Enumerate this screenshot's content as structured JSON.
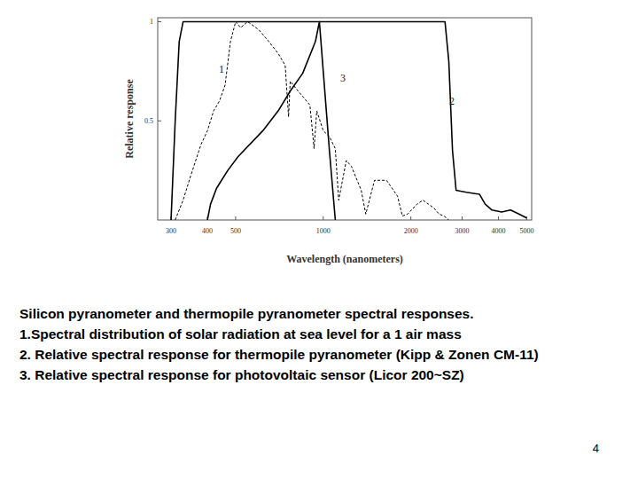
{
  "chart_data": {
    "type": "line",
    "x_label": "Wavelength (nanometers)",
    "y_label": "Relative response",
    "log": "x",
    "grid": false,
    "xlim": [
      270,
      5200
    ],
    "xticks": [
      300,
      400,
      500,
      1000,
      2000,
      3000,
      4000,
      5000
    ],
    "ylim": [
      0,
      1.02
    ],
    "yticks": [
      0.5,
      1
    ],
    "series": [
      {
        "name": "1",
        "color": "#000000",
        "line_style": "dashed",
        "x": [
          310,
          330,
          350,
          380,
          400,
          420,
          440,
          460,
          480,
          500,
          520,
          550,
          600,
          650,
          700,
          740,
          760,
          770,
          820,
          900,
          930,
          950,
          1000,
          1050,
          1100,
          1130,
          1200,
          1250,
          1350,
          1400,
          1500,
          1650,
          1800,
          1870,
          1950,
          2100,
          2200,
          2400,
          2500,
          2600,
          2700
        ],
        "values": [
          0,
          0.1,
          0.22,
          0.38,
          0.45,
          0.55,
          0.6,
          0.68,
          0.9,
          1.0,
          0.97,
          1.0,
          0.96,
          0.9,
          0.84,
          0.78,
          0.52,
          0.7,
          0.65,
          0.58,
          0.36,
          0.55,
          0.45,
          0.42,
          0.36,
          0.1,
          0.3,
          0.27,
          0.15,
          0.03,
          0.2,
          0.2,
          0.12,
          0.02,
          0.03,
          0.08,
          0.1,
          0.06,
          0.03,
          0.02,
          0
        ]
      },
      {
        "name": "2",
        "color": "#000000",
        "line_style": "solid",
        "x": [
          300,
          310,
          320,
          330,
          600,
          1000,
          2000,
          2620,
          2700,
          2780,
          2860,
          3100,
          3440,
          3600,
          3800,
          4100,
          4400,
          4700,
          5000
        ],
        "values": [
          0,
          0.5,
          0.9,
          1.0,
          1.0,
          1.0,
          1.0,
          1.0,
          0.8,
          0.35,
          0.15,
          0.14,
          0.13,
          0.08,
          0.05,
          0.04,
          0.05,
          0.03,
          0.01
        ]
      },
      {
        "name": "3",
        "color": "#000000",
        "line_style": "solid",
        "x": [
          400,
          410,
          430,
          470,
          510,
          620,
          700,
          770,
          850,
          940,
          970,
          1000,
          1050,
          1100
        ],
        "values": [
          0,
          0.08,
          0.16,
          0.25,
          0.32,
          0.45,
          0.55,
          0.65,
          0.74,
          0.9,
          1.0,
          0.75,
          0.35,
          0
        ]
      }
    ]
  },
  "caption": {
    "lines": [
      "Silicon pyranometer and thermopile pyranometer spectral responses.",
      "1.Spectral distribution of solar radiation at sea level for a 1 air mass",
      "2. Relative spectral response for thermopile pyranometer (Kipp & Zonen CM-11)",
      "3. Relative spectral response for photovoltaic sensor (Licor 200~SZ)"
    ]
  },
  "page_number": "4"
}
